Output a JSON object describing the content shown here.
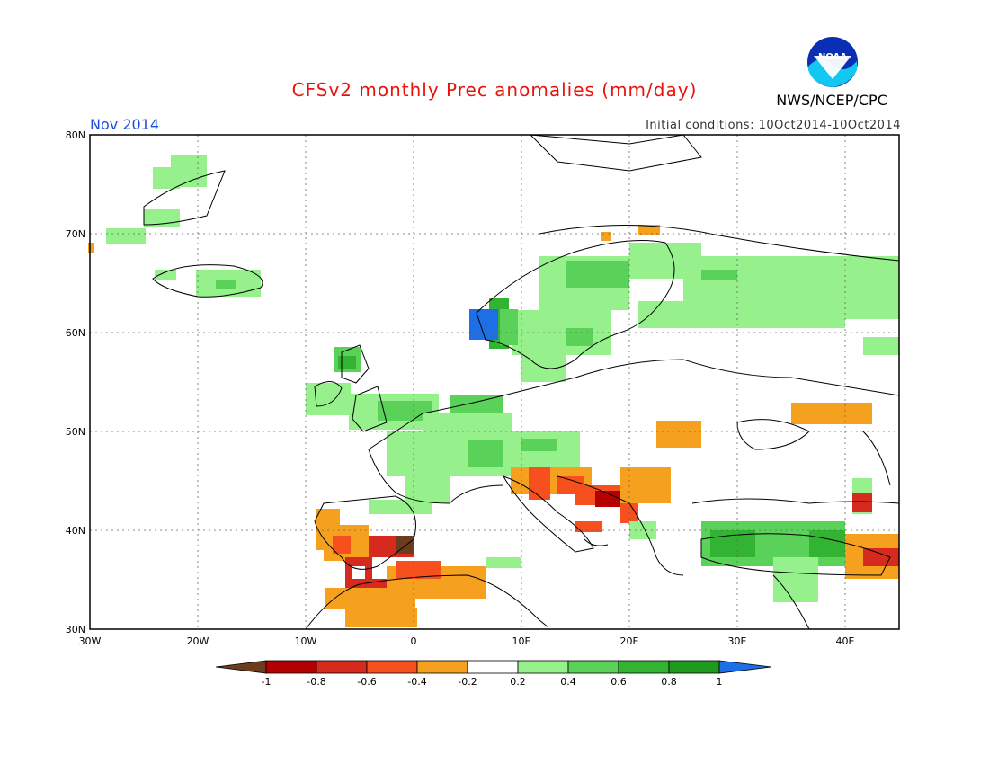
{
  "title": "CFSv2 monthly Prec anomalies (mm/day)",
  "month": "Nov 2014",
  "initial_conditions": "Initial conditions: 10Oct2014-10Oct2014",
  "agency": "NWS/NCEP/CPC",
  "logo_text": "NOAA",
  "map": {
    "lon_range": [
      -30,
      45
    ],
    "lat_range": [
      30,
      80
    ],
    "lon_ticks": [
      "30W",
      "20W",
      "10W",
      "0",
      "10E",
      "20E",
      "30E",
      "40E"
    ],
    "lat_ticks": [
      "30N",
      "40N",
      "50N",
      "60N",
      "70N",
      "80N"
    ],
    "grid": true
  },
  "colorbar": {
    "labels": [
      "-1",
      "-0.8",
      "-0.6",
      "-0.4",
      "-0.2",
      "0.2",
      "0.4",
      "0.6",
      "0.8",
      "1"
    ],
    "colors": [
      "#6b3d1e",
      "#b40000",
      "#d62a1e",
      "#f5501e",
      "#f5a01e",
      "#ffffff",
      "#96f08c",
      "#5ad25a",
      "#32b432",
      "#1e9b1e",
      "#1e6ee6"
    ]
  },
  "colors": {
    "title": "#e8140c",
    "month": "#1f4fd8"
  }
}
